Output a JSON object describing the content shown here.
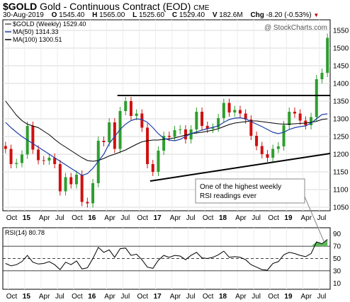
{
  "header": {
    "symbol": "$GOLD",
    "name": "Gold - Continuous Contract (EOD)",
    "exchange": "CME",
    "date": "30-Aug-2019",
    "o_label": "O",
    "o_value": "1545.40",
    "h_label": "H",
    "h_value": "1565.00",
    "l_label": "L",
    "l_value": "1525.60",
    "c_label": "C",
    "c_value": "1529.40",
    "v_label": "V",
    "v_value": "182.6M",
    "chg_label": "Chg",
    "chg_value": "-8.20 (-0.53%)",
    "chg_icon": "down-triangle-icon"
  },
  "watermark": "@ StockCharts.com",
  "colors": {
    "bull_candle": "#2e9e2e",
    "bear_candle": "#d01010",
    "ma50": "#1f3fa8",
    "ma100": "#000000",
    "trendline": "#000000",
    "rsi_line": "#000000",
    "rsi_highlight": "#5cb85c",
    "annotation_box": "#ffffff",
    "down_arrow": "#c00000"
  },
  "chart_data": [
    {
      "type": "candlestick",
      "legend": [
        {
          "label": "$GOLD (Weekly) 1529.40",
          "color": "#000000"
        },
        {
          "label": "MA(50) 1314.33",
          "color": "#1f3fa8"
        },
        {
          "label": "MA(100) 1300.51",
          "color": "#000000"
        }
      ],
      "ylim": [
        1040,
        1580
      ],
      "y_ticks": [
        1050,
        1100,
        1150,
        1200,
        1250,
        1300,
        1350,
        1400,
        1450,
        1500,
        1550
      ],
      "x_tick_labels": [
        "Oct",
        "15",
        "Apr",
        "Jul",
        "Oct",
        "16",
        "Apr",
        "Jul",
        "Oct",
        "17",
        "Apr",
        "Jul",
        "Oct",
        "18",
        "Apr",
        "Jul",
        "Oct",
        "19",
        "Apr",
        "Jul"
      ],
      "x_range": [
        "2014-09",
        "2019-09"
      ],
      "close_series": {
        "x": [
          "2014-09",
          "2014-10",
          "2014-11",
          "2014-12",
          "2015-01",
          "2015-02",
          "2015-03",
          "2015-04",
          "2015-05",
          "2015-06",
          "2015-07",
          "2015-08",
          "2015-09",
          "2015-10",
          "2015-11",
          "2015-12",
          "2016-01",
          "2016-02",
          "2016-03",
          "2016-04",
          "2016-05",
          "2016-06",
          "2016-07",
          "2016-08",
          "2016-09",
          "2016-10",
          "2016-11",
          "2016-12",
          "2017-01",
          "2017-02",
          "2017-03",
          "2017-04",
          "2017-05",
          "2017-06",
          "2017-07",
          "2017-08",
          "2017-09",
          "2017-10",
          "2017-11",
          "2017-12",
          "2018-01",
          "2018-02",
          "2018-03",
          "2018-04",
          "2018-05",
          "2018-06",
          "2018-07",
          "2018-08",
          "2018-09",
          "2018-10",
          "2018-11",
          "2018-12",
          "2019-01",
          "2019-02",
          "2019-03",
          "2019-04",
          "2019-05",
          "2019-06",
          "2019-07",
          "2019-08"
        ],
        "close": [
          1215,
          1172,
          1175,
          1199,
          1280,
          1213,
          1183,
          1182,
          1190,
          1172,
          1095,
          1135,
          1115,
          1142,
          1065,
          1061,
          1118,
          1238,
          1234,
          1290,
          1215,
          1322,
          1350,
          1308,
          1315,
          1275,
          1172,
          1150,
          1210,
          1252,
          1249,
          1268,
          1270,
          1242,
          1270,
          1320,
          1280,
          1272,
          1275,
          1302,
          1345,
          1318,
          1325,
          1315,
          1298,
          1252,
          1223,
          1200,
          1190,
          1215,
          1222,
          1282,
          1320,
          1315,
          1295,
          1282,
          1305,
          1412,
          1430,
          1529
        ]
      },
      "ma50_values": [
        1290,
        1275,
        1262,
        1250,
        1240,
        1230,
        1220,
        1210,
        1200,
        1190,
        1180,
        1170,
        1160,
        1150,
        1140,
        1145,
        1160,
        1180,
        1200,
        1230,
        1250,
        1270,
        1285,
        1295,
        1300,
        1298,
        1290,
        1275,
        1258,
        1245,
        1240,
        1238,
        1242,
        1250,
        1258,
        1263,
        1268,
        1272,
        1276,
        1280,
        1290,
        1298,
        1302,
        1303,
        1300,
        1292,
        1285,
        1278,
        1270,
        1262,
        1258,
        1262,
        1270,
        1275,
        1278,
        1280,
        1288,
        1300,
        1312,
        1314
      ],
      "ma100_values": [
        1350,
        1330,
        1310,
        1295,
        1285,
        1280,
        1275,
        1265,
        1255,
        1242,
        1230,
        1220,
        1210,
        1200,
        1190,
        1182,
        1180,
        1182,
        1188,
        1195,
        1200,
        1206,
        1212,
        1220,
        1228,
        1235,
        1238,
        1240,
        1240,
        1242,
        1244,
        1246,
        1250,
        1254,
        1258,
        1260,
        1262,
        1265,
        1268,
        1272,
        1278,
        1284,
        1288,
        1290,
        1292,
        1294,
        1294,
        1292,
        1290,
        1288,
        1286,
        1285,
        1285,
        1286,
        1287,
        1288,
        1290,
        1293,
        1298,
        1300
      ],
      "trendlines": [
        {
          "name": "resistance",
          "x": [
            "2016-06",
            "2019-09"
          ],
          "y": [
            1366,
            1366
          ]
        },
        {
          "name": "support",
          "x": [
            "2016-12",
            "2019-09"
          ],
          "y": [
            1124,
            1202
          ]
        }
      ],
      "annotation": {
        "text_line1": "One of the highest weekly",
        "text_line2": "RSI readings ever"
      }
    },
    {
      "type": "line",
      "legend": [
        {
          "label": "RSI(14) 80.78",
          "color": "#000000"
        }
      ],
      "ylim": [
        0,
        100
      ],
      "y_ticks": [
        10,
        30,
        50,
        70,
        90
      ],
      "reference_lines": [
        30,
        50,
        70
      ],
      "x_tick_labels": [
        "Oct",
        "15",
        "Apr",
        "Jul",
        "Oct",
        "16",
        "Apr",
        "Jul",
        "Oct",
        "17",
        "Apr",
        "Jul",
        "Oct",
        "18",
        "Apr",
        "Jul",
        "Oct",
        "19",
        "Apr",
        "Jul"
      ],
      "rsi_values": [
        42,
        38,
        40,
        45,
        55,
        44,
        41,
        42,
        45,
        40,
        32,
        44,
        40,
        46,
        33,
        35,
        50,
        68,
        60,
        64,
        52,
        66,
        67,
        55,
        57,
        48,
        36,
        34,
        47,
        55,
        52,
        55,
        54,
        48,
        55,
        60,
        51,
        50,
        52,
        56,
        62,
        52,
        53,
        52,
        48,
        40,
        36,
        32,
        31,
        42,
        45,
        56,
        60,
        58,
        55,
        53,
        58,
        77,
        74,
        81
      ]
    }
  ]
}
